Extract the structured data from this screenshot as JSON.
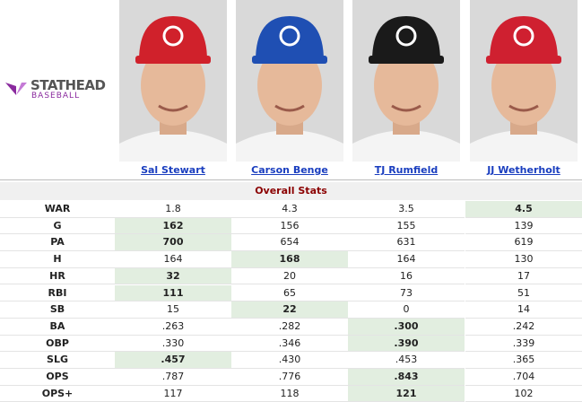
{
  "logo": {
    "name": "STATHEAD",
    "sub": "BASEBALL"
  },
  "players": [
    "Sal Stewart",
    "Carson Benge",
    "TJ Rumfield",
    "JJ Wetherholt"
  ],
  "section": "Overall Stats",
  "rows": [
    {
      "stat": "WAR",
      "values": [
        "1.8",
        "4.3",
        "3.5",
        "4.5"
      ],
      "best": 3
    },
    {
      "stat": "G",
      "values": [
        "162",
        "156",
        "155",
        "139"
      ],
      "best": 0
    },
    {
      "stat": "PA",
      "values": [
        "700",
        "654",
        "631",
        "619"
      ],
      "best": 0
    },
    {
      "stat": "H",
      "values": [
        "164",
        "168",
        "164",
        "130"
      ],
      "best": 1
    },
    {
      "stat": "HR",
      "values": [
        "32",
        "20",
        "16",
        "17"
      ],
      "best": 0
    },
    {
      "stat": "RBI",
      "values": [
        "111",
        "65",
        "73",
        "51"
      ],
      "best": 0
    },
    {
      "stat": "SB",
      "values": [
        "15",
        "22",
        "0",
        "14"
      ],
      "best": 1
    },
    {
      "stat": "BA",
      "values": [
        ".263",
        ".282",
        ".300",
        ".242"
      ],
      "best": 2
    },
    {
      "stat": "OBP",
      "values": [
        ".330",
        ".346",
        ".390",
        ".339"
      ],
      "best": 2
    },
    {
      "stat": "SLG",
      "values": [
        ".457",
        ".430",
        ".453",
        ".365"
      ],
      "best": 0
    },
    {
      "stat": "OPS",
      "values": [
        ".787",
        ".776",
        ".843",
        ".704"
      ],
      "best": 2
    },
    {
      "stat": "OPS+",
      "values": [
        "117",
        "118",
        "121",
        "102"
      ],
      "best": 2
    }
  ]
}
